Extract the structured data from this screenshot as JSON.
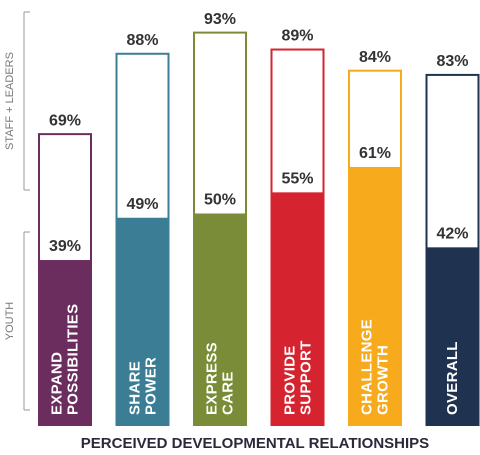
{
  "chart_data": {
    "type": "bar",
    "x_label": "PERCEIVED DEVELOPMENTAL RELATIONSHIPS",
    "categories": [
      "EXPAND POSSIBILITIES",
      "SHARE POWER",
      "EXPRESS CARE",
      "PROVIDE SUPPORT",
      "CHALLENGE GROWTH",
      "OVERALL"
    ],
    "colors": [
      "#6b2d5e",
      "#3b7d94",
      "#7a8c37",
      "#d5232f",
      "#f6aa1c",
      "#1f3350"
    ],
    "series": [
      {
        "name": "YOUTH",
        "values": [
          39,
          49,
          50,
          55,
          61,
          42
        ],
        "value_labels": [
          "39%",
          "49%",
          "50%",
          "55%",
          "61%",
          "42%"
        ]
      },
      {
        "name": "STAFF + LEADERS",
        "values": [
          69,
          88,
          93,
          89,
          84,
          83
        ],
        "value_labels": [
          "69%",
          "88%",
          "93%",
          "89%",
          "84%",
          "83%"
        ]
      }
    ],
    "ylim": [
      0,
      100
    ]
  }
}
